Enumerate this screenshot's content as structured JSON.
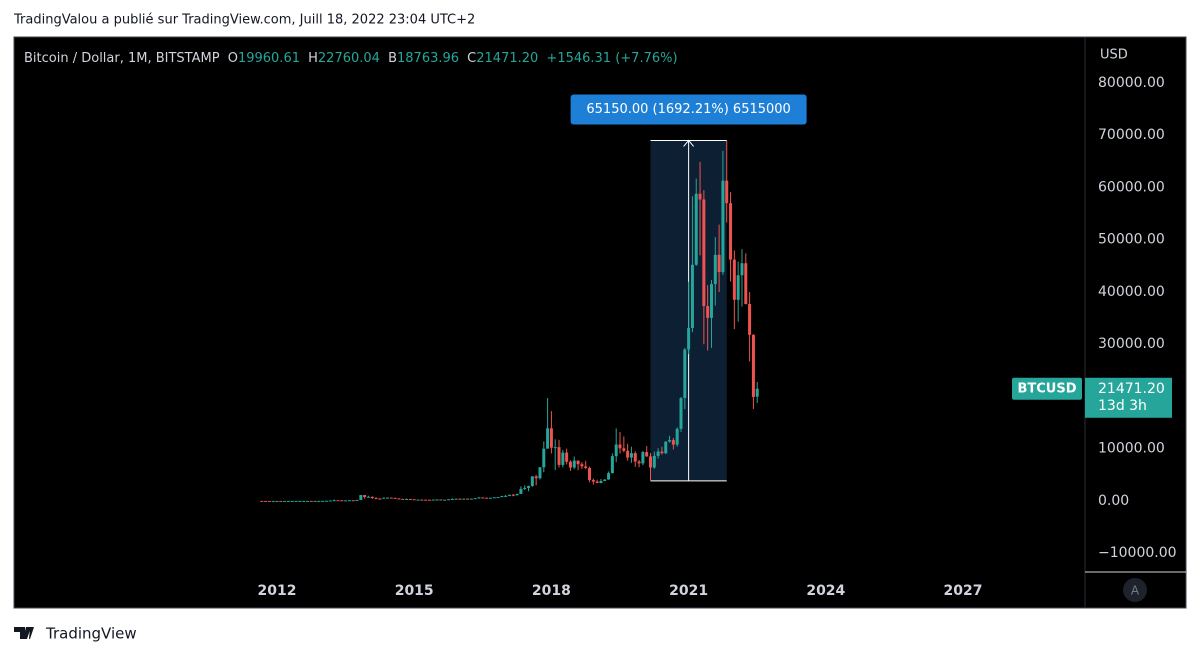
{
  "header": "TradingValou a publié sur TradingView.com, Juill 18, 2022 23:04 UTC+2",
  "footer": "TradingView",
  "legend": {
    "symbol": "Bitcoin / Dollar, 1M, BITSTAMP",
    "o_label": "O",
    "o": "19960.61",
    "h_label": "H",
    "h": "22760.04",
    "b_label": "B",
    "b": "18763.96",
    "c_label": "C",
    "c": "21471.20",
    "change": "+1546.31 (+7.76%)"
  },
  "auto_button": "A",
  "chart_data": {
    "type": "candlestick",
    "currency": "USD",
    "x": [
      "2011-09",
      "2011-10",
      "2011-11",
      "2011-12",
      "2012-01",
      "2012-02",
      "2012-03",
      "2012-04",
      "2012-05",
      "2012-06",
      "2012-07",
      "2012-08",
      "2012-09",
      "2012-10",
      "2012-11",
      "2012-12",
      "2013-01",
      "2013-02",
      "2013-03",
      "2013-04",
      "2013-05",
      "2013-06",
      "2013-07",
      "2013-08",
      "2013-09",
      "2013-10",
      "2013-11",
      "2013-12",
      "2014-01",
      "2014-02",
      "2014-03",
      "2014-04",
      "2014-05",
      "2014-06",
      "2014-07",
      "2014-08",
      "2014-09",
      "2014-10",
      "2014-11",
      "2014-12",
      "2015-01",
      "2015-02",
      "2015-03",
      "2015-04",
      "2015-05",
      "2015-06",
      "2015-07",
      "2015-08",
      "2015-09",
      "2015-10",
      "2015-11",
      "2015-12",
      "2016-01",
      "2016-02",
      "2016-03",
      "2016-04",
      "2016-05",
      "2016-06",
      "2016-07",
      "2016-08",
      "2016-09",
      "2016-10",
      "2016-11",
      "2016-12",
      "2017-01",
      "2017-02",
      "2017-03",
      "2017-04",
      "2017-05",
      "2017-06",
      "2017-07",
      "2017-08",
      "2017-09",
      "2017-10",
      "2017-11",
      "2017-12",
      "2018-01",
      "2018-02",
      "2018-03",
      "2018-04",
      "2018-05",
      "2018-06",
      "2018-07",
      "2018-08",
      "2018-09",
      "2018-10",
      "2018-11",
      "2018-12",
      "2019-01",
      "2019-02",
      "2019-03",
      "2019-04",
      "2019-05",
      "2019-06",
      "2019-07",
      "2019-08",
      "2019-09",
      "2019-10",
      "2019-11",
      "2019-12",
      "2020-01",
      "2020-02",
      "2020-03",
      "2020-04",
      "2020-05",
      "2020-06",
      "2020-07",
      "2020-08",
      "2020-09",
      "2020-10",
      "2020-11",
      "2020-12",
      "2021-01",
      "2021-02",
      "2021-03",
      "2021-04",
      "2021-05",
      "2021-06",
      "2021-07",
      "2021-08",
      "2021-09",
      "2021-10",
      "2021-11",
      "2021-12",
      "2022-01",
      "2022-02",
      "2022-03",
      "2022-04",
      "2022-05",
      "2022-06",
      "2022-07"
    ],
    "series": [
      {
        "name": "BTCUSD",
        "up_color": "#26a69a",
        "down_color": "#ef5350",
        "open": [
          8,
          5,
          3.2,
          3,
          4.7,
          5.5,
          4.9,
          4.9,
          5,
          5.1,
          6.7,
          9.3,
          10,
          12.4,
          11.2,
          12.6,
          13.5,
          20,
          33,
          93,
          139,
          129,
          97,
          106,
          135,
          127,
          198,
          1130,
          750,
          800,
          550,
          450,
          445,
          630,
          640,
          590,
          480,
          390,
          340,
          378,
          320,
          220,
          255,
          245,
          235,
          230,
          265,
          285,
          230,
          237,
          315,
          378,
          430,
          370,
          437,
          416,
          448,
          530,
          670,
          620,
          575,
          610,
          700,
          740,
          960,
          970,
          1190,
          1080,
          1350,
          2300,
          2500,
          2870,
          4700,
          4340,
          6450,
          10000,
          13900,
          10200,
          10300,
          6900,
          9250,
          7500,
          6400,
          7730,
          7030,
          6630,
          6320,
          4000,
          3700,
          3440,
          3820,
          4100,
          5320,
          8570,
          10800,
          10080,
          9600,
          8300,
          9150,
          7540,
          7190,
          9350,
          8520,
          6410,
          8630,
          9450,
          9140,
          11350,
          11650,
          10780,
          13800,
          19700,
          28990,
          33100,
          45200,
          58800,
          57700,
          37300,
          35040,
          41500,
          47100,
          43800,
          61300,
          57000,
          46200,
          38500,
          43200,
          45500,
          37700,
          31800,
          19960.61
        ],
        "high": [
          8.5,
          5.2,
          3.5,
          4.9,
          7.4,
          6.2,
          5.4,
          5.4,
          5.2,
          7,
          9.5,
          16,
          12.5,
          12.6,
          12.8,
          13.8,
          21,
          34,
          95,
          266,
          139,
          129,
          111,
          136,
          140,
          214,
          1163,
          1150,
          1000,
          860,
          700,
          540,
          630,
          680,
          650,
          600,
          505,
          415,
          455,
          385,
          320,
          265,
          300,
          260,
          245,
          270,
          318,
          285,
          245,
          330,
          500,
          465,
          460,
          445,
          440,
          465,
          545,
          770,
          690,
          630,
          610,
          715,
          755,
          970,
          1150,
          1200,
          1330,
          1350,
          2790,
          2980,
          2920,
          4750,
          5000,
          6470,
          11400,
          19700,
          17200,
          11800,
          11700,
          9750,
          10000,
          7780,
          8500,
          7150,
          7420,
          7680,
          6580,
          4300,
          4070,
          4200,
          4160,
          5640,
          9100,
          13880,
          13200,
          12350,
          10950,
          10380,
          9510,
          7850,
          9590,
          10500,
          9180,
          9460,
          10080,
          10380,
          11440,
          12470,
          12070,
          14100,
          19900,
          29300,
          41950,
          58350,
          61700,
          64900,
          59500,
          41300,
          42300,
          50500,
          52900,
          67000,
          69000,
          59100,
          47950,
          45800,
          48200,
          47400,
          40000,
          31900,
          22760.04
        ],
        "low": [
          4.8,
          2.2,
          2,
          2.8,
          4.6,
          4.3,
          4.5,
          4.7,
          4.9,
          5.1,
          6.5,
          7,
          10,
          9.9,
          10,
          12.5,
          13.3,
          19.5,
          33,
          50,
          111,
          88,
          65,
          102,
          115,
          104,
          194,
          456,
          740,
          400,
          440,
          340,
          420,
          560,
          580,
          440,
          375,
          275,
          320,
          310,
          165,
          210,
          240,
          215,
          230,
          225,
          260,
          200,
          227,
          235,
          310,
          350,
          350,
          365,
          400,
          410,
          440,
          530,
          475,
          560,
          590,
          600,
          690,
          740,
          750,
          920,
          890,
          1060,
          1340,
          2100,
          1850,
          2700,
          2980,
          4100,
          5500,
          10800,
          9100,
          5900,
          6420,
          6440,
          7000,
          5760,
          6080,
          5880,
          6100,
          6080,
          3590,
          3120,
          3400,
          3380,
          3860,
          4060,
          5300,
          7450,
          9060,
          9320,
          7700,
          7300,
          6530,
          6450,
          6850,
          8450,
          3850,
          6150,
          8120,
          8900,
          8970,
          11170,
          9850,
          10380,
          13210,
          17580,
          28100,
          32300,
          45000,
          47000,
          30000,
          28800,
          29300,
          37400,
          40000,
          43300,
          53300,
          42000,
          32900,
          34300,
          37200,
          37600,
          26700,
          17600,
          18763.96
        ],
        "close": [
          5,
          3.2,
          3,
          4.7,
          5.5,
          4.9,
          4.9,
          5,
          5.1,
          6.7,
          9.3,
          10,
          12.4,
          11.2,
          12.6,
          13.5,
          20,
          33,
          93,
          139,
          129,
          97,
          106,
          135,
          127,
          198,
          1130,
          750,
          800,
          550,
          450,
          445,
          630,
          640,
          590,
          480,
          390,
          340,
          378,
          320,
          220,
          255,
          245,
          235,
          230,
          265,
          285,
          230,
          237,
          315,
          378,
          430,
          370,
          437,
          416,
          448,
          530,
          670,
          620,
          575,
          610,
          700,
          740,
          960,
          970,
          1190,
          1080,
          1350,
          2300,
          2500,
          2870,
          4700,
          4340,
          6450,
          10000,
          13900,
          10200,
          10300,
          6900,
          9250,
          7500,
          6400,
          7730,
          7030,
          6630,
          6320,
          4000,
          3700,
          3440,
          3820,
          4100,
          5320,
          8570,
          10800,
          10080,
          9600,
          8300,
          9150,
          7540,
          7190,
          9350,
          8520,
          6410,
          8630,
          9450,
          9140,
          11350,
          11650,
          10780,
          13800,
          19700,
          28990,
          33100,
          45200,
          58800,
          57700,
          37300,
          35040,
          41500,
          47100,
          43800,
          61300,
          57000,
          46200,
          38500,
          43200,
          45500,
          37700,
          31800,
          19900,
          21471.2
        ]
      }
    ],
    "xlim": [
      "2006-04",
      "2029-09"
    ],
    "xticks": [
      "2012",
      "2015",
      "2018",
      "2021",
      "2024",
      "2027"
    ],
    "ylim": [
      -13600,
      88800
    ],
    "yticks": [
      {
        "value": -10000,
        "label": "−10000.00"
      },
      {
        "value": 0,
        "label": "0.00"
      },
      {
        "value": 10000,
        "label": "10000.00"
      },
      {
        "value": 20000,
        "label": "20000.00"
      },
      {
        "value": 30000,
        "label": "30000.00"
      },
      {
        "value": 40000,
        "label": "40000.00"
      },
      {
        "value": 50000,
        "label": "50000.00"
      },
      {
        "value": 60000,
        "label": "60000.00"
      },
      {
        "value": 70000,
        "label": "70000.00"
      },
      {
        "value": 80000,
        "label": "80000.00"
      }
    ],
    "price_label": {
      "value": 21471.2,
      "label": "21471.20",
      "countdown": "13d 3h"
    },
    "measure": {
      "label": "65150.00 (1692.21%) 6515000",
      "start": "2020-03",
      "end": "2021-11",
      "low": 3850,
      "high": 69000
    }
  }
}
